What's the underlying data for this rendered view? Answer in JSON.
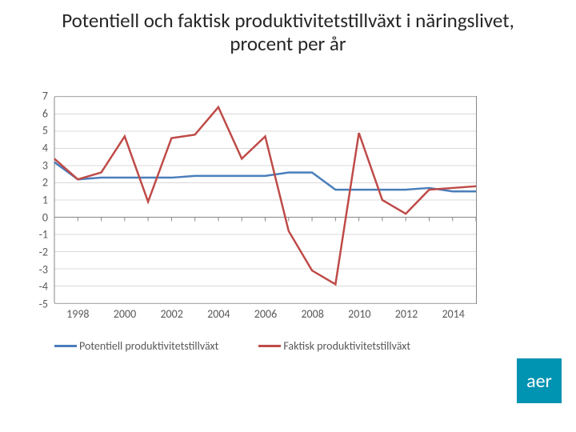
{
  "title": "Potentiell och faktisk produktivitetstillväxt i näringslivet, procent per år",
  "title_fontsize": 25,
  "chart": {
    "type": "line",
    "background_color": "#ffffff",
    "plot_border_color": "#868686",
    "grid_color": "#d9d9d9",
    "axis_color": "#868686",
    "tick_color": "#868686",
    "tick_fontsize": 14,
    "tick_text_color": "#595959",
    "ylim": [
      -5,
      7
    ],
    "ytick_step": 1,
    "yticks": [
      7,
      6,
      5,
      4,
      3,
      2,
      1,
      0,
      -1,
      -2,
      -3,
      -4,
      -5
    ],
    "x_years": [
      1997,
      1998,
      1999,
      2000,
      2001,
      2002,
      2003,
      2004,
      2005,
      2006,
      2007,
      2008,
      2009,
      2010,
      2011,
      2012,
      2013,
      2014,
      2015
    ],
    "xlabels": [
      1998,
      2000,
      2002,
      2004,
      2006,
      2008,
      2010,
      2012,
      2014
    ],
    "line_width": 2.5,
    "series": [
      {
        "name": "Potentiell produktivitetstillväxt",
        "color": "#4a7ebb",
        "values": [
          3.2,
          2.2,
          2.3,
          2.3,
          2.3,
          2.3,
          2.4,
          2.4,
          2.4,
          2.4,
          2.6,
          2.6,
          1.6,
          1.6,
          1.6,
          1.6,
          1.7,
          1.5,
          1.5
        ]
      },
      {
        "name": "Faktisk produktivitetstillväxt",
        "color": "#be4b48",
        "values": [
          3.4,
          2.2,
          2.6,
          4.7,
          0.9,
          4.6,
          4.8,
          6.4,
          3.4,
          4.7,
          -0.8,
          -3.1,
          -3.9,
          4.9,
          1.0,
          0.2,
          1.6,
          1.7,
          1.8
        ]
      }
    ]
  },
  "legend": {
    "fontsize": 14,
    "items": [
      {
        "label": "Potentiell produktivitetstillväxt",
        "color": "#4a7ebb"
      },
      {
        "label": "Faktisk produktivitetstillväxt",
        "color": "#be4b48"
      }
    ]
  },
  "logo": {
    "text": "aer",
    "background": "#0093b2",
    "text_color": "#ffffff",
    "fontsize": 24
  }
}
